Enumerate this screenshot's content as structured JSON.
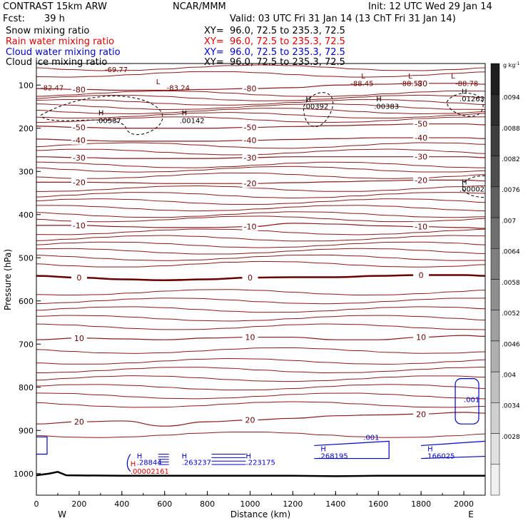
{
  "header": {
    "model": "CONTRAST 15km ARW",
    "org": "NCAR/MMM",
    "init": "Init: 12 UTC Wed 29 Jan 14",
    "fcst_label": "Fcst:",
    "fcst_value": "39 h",
    "valid": "Valid: 03 UTC Fri 31 Jan 14 (13 ChT Fri 31 Jan 14)"
  },
  "fields": [
    {
      "name": "Snow mixing ratio",
      "xy": "XY=  96.0, 72.5 to 235.3, 72.5",
      "color": "#000000"
    },
    {
      "name": "Rain water mixing ratio",
      "xy": "XY=  96.0, 72.5 to 235.3, 72.5",
      "color": "#e00000"
    },
    {
      "name": "Cloud water mixing ratio",
      "xy": "XY=  96.0, 72.5 to 235.3, 72.5",
      "color": "#0000cc"
    },
    {
      "name": "Cloud ice mixing ratio",
      "xy": "XY=  96.0, 72.5 to 235.3, 72.5",
      "color": "#000000"
    }
  ],
  "chart_data": {
    "type": "line",
    "xlabel": "Distance (km)",
    "ylabel": "Pressure (hPa)",
    "xlim": [
      0,
      2100
    ],
    "ylim": [
      1050,
      50
    ],
    "x_ticks": [
      0,
      200,
      400,
      600,
      800,
      1000,
      1200,
      1400,
      1600,
      1800,
      2000
    ],
    "x_tick_labels": [
      "0",
      "200",
      "400",
      "600",
      "800",
      "1000",
      "1200",
      "1400",
      "1600",
      "1800",
      "2000"
    ],
    "y_ticks": [
      100,
      200,
      300,
      400,
      500,
      600,
      700,
      800,
      900,
      1000
    ],
    "y_tick_labels": [
      "100",
      "200",
      "300",
      "400",
      "500",
      "600",
      "700",
      "800",
      "900",
      "1000"
    ],
    "x_end_labels": {
      "left": "W",
      "right": "E"
    },
    "colorbar": {
      "unit": "g kg",
      "unit_exp": "-1",
      "labels": [
        ".0094",
        ".0088",
        ".0082",
        ".0076",
        ".007",
        ".0064",
        ".0058",
        ".0052",
        ".0046",
        ".004",
        ".0034",
        ".0028"
      ]
    },
    "temperature_series": [
      {
        "name": "-80",
        "label": "-80",
        "x": [
          0,
          200,
          400,
          600,
          800,
          1000,
          1200,
          1400,
          1600,
          1800,
          2000,
          2100
        ],
        "y": [
          108,
          110,
          112,
          112,
          110,
          108,
          106,
          100,
          98,
          96,
          96,
          98
        ]
      },
      {
        "name": "-50",
        "label": "-50",
        "x": [
          0,
          200,
          400,
          600,
          800,
          1000,
          1200,
          1400,
          1600,
          1800,
          2000,
          2100
        ],
        "y": [
          195,
          198,
          200,
          200,
          200,
          198,
          196,
          194,
          192,
          190,
          190,
          192
        ]
      },
      {
        "name": "-40",
        "label": "-40",
        "x": [
          0,
          200,
          400,
          600,
          800,
          1000,
          1200,
          1400,
          1600,
          1800,
          2000,
          2100
        ],
        "y": [
          225,
          228,
          230,
          230,
          230,
          228,
          226,
          224,
          222,
          222,
          222,
          224
        ]
      },
      {
        "name": "-30",
        "label": "-30",
        "x": [
          0,
          200,
          400,
          600,
          800,
          1000,
          1200,
          1400,
          1600,
          1800,
          2000,
          2100
        ],
        "y": [
          266,
          268,
          270,
          270,
          270,
          268,
          266,
          266,
          266,
          266,
          266,
          268
        ]
      },
      {
        "name": "-20",
        "label": "-20",
        "x": [
          0,
          200,
          400,
          600,
          800,
          1000,
          1200,
          1400,
          1600,
          1800,
          2000,
          2100
        ],
        "y": [
          325,
          325,
          326,
          328,
          328,
          328,
          326,
          324,
          322,
          320,
          320,
          322
        ]
      },
      {
        "name": "-10",
        "label": "-10",
        "x": [
          0,
          200,
          400,
          600,
          800,
          1000,
          1200,
          1400,
          1600,
          1800,
          2000,
          2100
        ],
        "y": [
          425,
          425,
          428,
          430,
          430,
          428,
          420,
          422,
          426,
          428,
          430,
          432
        ]
      },
      {
        "name": "0",
        "label": "0",
        "x": [
          0,
          200,
          400,
          600,
          800,
          1000,
          1200,
          1400,
          1600,
          1800,
          2000,
          2100
        ],
        "y": [
          542,
          546,
          550,
          552,
          550,
          546,
          545,
          545,
          542,
          540,
          540,
          542
        ]
      },
      {
        "name": "10",
        "label": "10",
        "x": [
          0,
          200,
          400,
          600,
          800,
          1000,
          1200,
          1400,
          1600,
          1800,
          2000,
          2100
        ],
        "y": [
          690,
          686,
          688,
          690,
          686,
          684,
          684,
          690,
          690,
          684,
          680,
          682
        ]
      },
      {
        "name": "20",
        "label": "20",
        "x": [
          0,
          200,
          400,
          600,
          800,
          1000,
          1200,
          1400,
          1600,
          1800,
          2000,
          2100
        ],
        "y": [
          885,
          880,
          878,
          890,
          880,
          876,
          872,
          866,
          864,
          862,
          858,
          860
        ]
      }
    ],
    "isotherm_step_lines_pressure": [
      60,
      75,
      120,
      130,
      140,
      150,
      160,
      170,
      180,
      240,
      255,
      285,
      295,
      310,
      340,
      355,
      370,
      385,
      400,
      410,
      440,
      455,
      470,
      485,
      500,
      515,
      580,
      600,
      620,
      640,
      660,
      715,
      740,
      760,
      780,
      800,
      820,
      840,
      910
    ],
    "extrema_labels": [
      {
        "text": "-69.77",
        "x": 320,
        "p": 70,
        "color": "#6b0000"
      },
      {
        "text": "L",
        "x": 560,
        "p": 98,
        "color": "#6b0000"
      },
      {
        "text": "-83.24",
        "x": 610,
        "p": 112,
        "color": "#6b0000"
      },
      {
        "text": "-82.47",
        "x": 20,
        "p": 112,
        "color": "#6b0000"
      },
      {
        "text": "L",
        "x": 1520,
        "p": 85,
        "color": "#6b0000"
      },
      {
        "text": "-88.45",
        "x": 1470,
        "p": 102,
        "color": "#6b0000"
      },
      {
        "text": "L",
        "x": 1740,
        "p": 85,
        "color": "#6b0000"
      },
      {
        "text": "-88.57",
        "x": 1700,
        "p": 102,
        "color": "#6b0000"
      },
      {
        "text": "L",
        "x": 1940,
        "p": 85,
        "color": "#6b0000"
      },
      {
        "text": "-88.78",
        "x": 1960,
        "p": 102,
        "color": "#6b0000"
      }
    ],
    "moisture_labels": [
      {
        "text": "H",
        "x": 290,
        "p": 170,
        "color": "#000000"
      },
      {
        "text": ".00537",
        "x": 280,
        "p": 188,
        "color": "#000000"
      },
      {
        "text": "H",
        "x": 680,
        "p": 170,
        "color": "#000000"
      },
      {
        "text": ".00142",
        "x": 670,
        "p": 188,
        "color": "#000000"
      },
      {
        "text": "H",
        "x": 1260,
        "p": 138,
        "color": "#000000"
      },
      {
        "text": ".00392",
        "x": 1250,
        "p": 155,
        "color": "#000000"
      },
      {
        "text": "H",
        "x": 1590,
        "p": 138,
        "color": "#000000"
      },
      {
        "text": ".00383",
        "x": 1580,
        "p": 155,
        "color": "#000000"
      },
      {
        "text": "H",
        "x": 1990,
        "p": 120,
        "color": "#000000"
      },
      {
        "text": ".01263",
        "x": 1980,
        "p": 138,
        "color": "#000000"
      },
      {
        "text": "H",
        "x": 1990,
        "p": 330,
        "color": "#000000"
      },
      {
        "text": ".00002",
        "x": 1980,
        "p": 347,
        "color": "#000000"
      },
      {
        "text": "H",
        "x": 470,
        "p": 965,
        "color": "#0000cc"
      },
      {
        "text": ".28844",
        "x": 470,
        "p": 980,
        "color": "#0000cc"
      },
      {
        "text": "H",
        "x": 680,
        "p": 965,
        "color": "#0000cc"
      },
      {
        "text": ".263237",
        "x": 680,
        "p": 980,
        "color": "#0000cc"
      },
      {
        "text": "H",
        "x": 980,
        "p": 965,
        "color": "#0000cc"
      },
      {
        "text": ".223175",
        "x": 980,
        "p": 980,
        "color": "#0000cc"
      },
      {
        "text": "H",
        "x": 1330,
        "p": 948,
        "color": "#0000cc"
      },
      {
        "text": ".268195",
        "x": 1320,
        "p": 965,
        "color": "#0000cc"
      },
      {
        "text": ".001",
        "x": 1530,
        "p": 922,
        "color": "#0000cc"
      },
      {
        "text": "H",
        "x": 1830,
        "p": 948,
        "color": "#0000cc"
      },
      {
        "text": ".166025",
        "x": 1820,
        "p": 965,
        "color": "#0000cc"
      },
      {
        "text": ".001",
        "x": 2000,
        "p": 834,
        "color": "#0000cc"
      },
      {
        "text": "H",
        "x": 440,
        "p": 983,
        "color": "#e00000"
      },
      {
        "text": ".00002161",
        "x": 440,
        "p": 1000,
        "color": "#e00000"
      }
    ],
    "terrain": {
      "x": [
        0,
        60,
        100,
        140,
        400,
        800,
        1200,
        1400,
        1600,
        2000,
        2100
      ],
      "p": [
        1004,
        1000,
        996,
        1004,
        1005,
        1005,
        1005,
        1006,
        1005,
        1005,
        1005
      ]
    }
  }
}
